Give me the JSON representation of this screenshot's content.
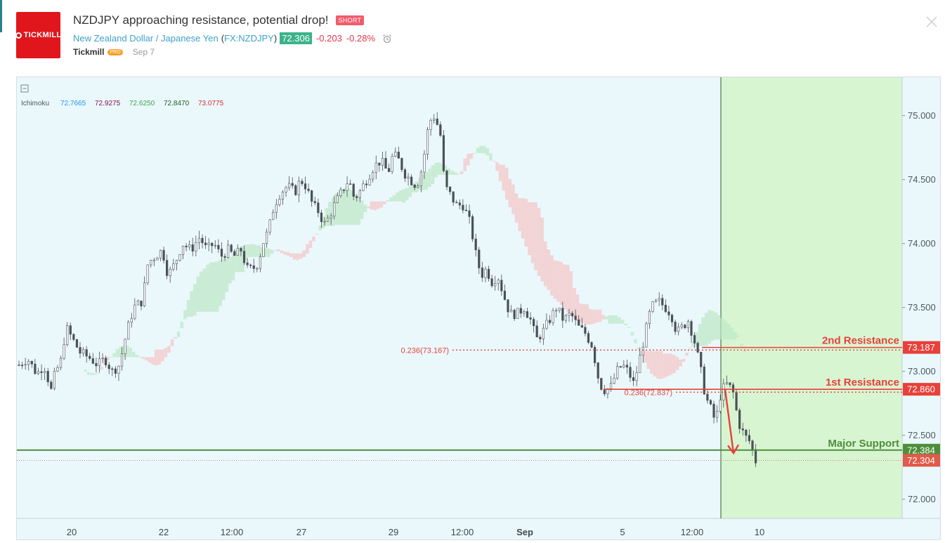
{
  "header": {
    "title": "NZDJPY approaching resistance, potential drop!",
    "badge": "SHORT",
    "logo_text": "TICKMILL",
    "symbol_name": "New Zealand Dollar / Japanese Yen",
    "symbol_code": "FX:NZDJPY",
    "open_paren": "(",
    "close_paren": ")",
    "price": "72.306",
    "change": "-0.203",
    "change_pct": "-0.28%",
    "author": "Tickmill",
    "author_badge": "PRO",
    "date": "Sep 7",
    "icons": {
      "alarm": "alarm-clock-icon",
      "close": "close-icon",
      "collapse": "collapse-icon"
    }
  },
  "colors": {
    "accent": "#3ea1c9",
    "up_price_badge": "#3bb38a",
    "down": "#e5364a",
    "resistance": "#e8403a",
    "support": "#4e8f3a",
    "projection_zone": "#d8f5d2",
    "chart_bg": "#eaf8fc"
  },
  "chart_data": {
    "type": "candlestick",
    "title": "",
    "indicator": {
      "name": "Ichimoku",
      "values": [
        "72.7665",
        "72.9275",
        "72.6250",
        "72.8470",
        "73.0775"
      ],
      "value_colors": [
        "#2196f3",
        "#880e4f",
        "#43a047",
        "#1b5e20",
        "#d32f2f"
      ]
    },
    "y_axis": {
      "position": "right",
      "range": [
        71.85,
        75.3
      ],
      "ticks": [
        "72.000",
        "72.500",
        "73.000",
        "73.500",
        "74.000",
        "74.500",
        "75.000"
      ]
    },
    "x_axis": {
      "ticks": [
        "20",
        "22",
        "12:00",
        "27",
        "29",
        "12:00",
        "Sep",
        "5",
        "12:00",
        "10"
      ]
    },
    "levels": [
      {
        "label": "2nd Resistance",
        "value": 73.187,
        "value_text": "73.187",
        "color": "#e8403a"
      },
      {
        "label": "1st Resistance",
        "value": 72.86,
        "value_text": "72.860",
        "color": "#e8403a"
      },
      {
        "label": "Major Support",
        "value": 72.384,
        "value_text": "72.384",
        "color": "#4e8f3a"
      },
      {
        "label": "",
        "value": 72.304,
        "value_text": "72.304",
        "color": "#e05a4a"
      }
    ],
    "fib_levels": [
      {
        "label": "0.236(73.167)",
        "value": 73.167
      },
      {
        "label": "0.236(72.837)",
        "value": 72.837
      }
    ],
    "close_path": [
      [
        0,
        73.05
      ],
      [
        0.012,
        73.1
      ],
      [
        0.025,
        72.98
      ],
      [
        0.035,
        73.05
      ],
      [
        0.045,
        72.85
      ],
      [
        0.05,
        72.98
      ],
      [
        0.06,
        73.1
      ],
      [
        0.065,
        73.35
      ],
      [
        0.075,
        73.25
      ],
      [
        0.085,
        73.15
      ],
      [
        0.1,
        73.1
      ],
      [
        0.11,
        73.05
      ],
      [
        0.12,
        73.1
      ],
      [
        0.13,
        73.0
      ],
      [
        0.14,
        73.05
      ],
      [
        0.15,
        73.3
      ],
      [
        0.16,
        73.5
      ],
      [
        0.172,
        73.55
      ],
      [
        0.18,
        73.85
      ],
      [
        0.19,
        73.9
      ],
      [
        0.2,
        73.95
      ],
      [
        0.208,
        73.75
      ],
      [
        0.218,
        73.85
      ],
      [
        0.228,
        74.0
      ],
      [
        0.24,
        73.95
      ],
      [
        0.252,
        74.05
      ],
      [
        0.262,
        73.95
      ],
      [
        0.272,
        74.0
      ],
      [
        0.282,
        73.9
      ],
      [
        0.292,
        73.95
      ],
      [
        0.3,
        73.9
      ],
      [
        0.31,
        73.95
      ],
      [
        0.318,
        73.8
      ],
      [
        0.326,
        73.8
      ],
      [
        0.334,
        73.85
      ],
      [
        0.34,
        74.0
      ],
      [
        0.348,
        74.1
      ],
      [
        0.356,
        74.3
      ],
      [
        0.365,
        74.4
      ],
      [
        0.375,
        74.45
      ],
      [
        0.385,
        74.4
      ],
      [
        0.393,
        74.5
      ],
      [
        0.4,
        74.45
      ],
      [
        0.41,
        74.3
      ],
      [
        0.418,
        74.25
      ],
      [
        0.426,
        74.15
      ],
      [
        0.432,
        74.2
      ],
      [
        0.44,
        74.3
      ],
      [
        0.45,
        74.4
      ],
      [
        0.46,
        74.5
      ],
      [
        0.468,
        74.35
      ],
      [
        0.475,
        74.4
      ],
      [
        0.485,
        74.5
      ],
      [
        0.495,
        74.6
      ],
      [
        0.505,
        74.65
      ],
      [
        0.515,
        74.55
      ],
      [
        0.522,
        74.7
      ],
      [
        0.53,
        74.65
      ],
      [
        0.538,
        74.55
      ],
      [
        0.546,
        74.5
      ],
      [
        0.555,
        74.45
      ],
      [
        0.563,
        74.6
      ],
      [
        0.572,
        74.95
      ],
      [
        0.58,
        75.0
      ],
      [
        0.588,
        74.85
      ],
      [
        0.594,
        74.45
      ],
      [
        0.6,
        74.4
      ],
      [
        0.61,
        74.3
      ],
      [
        0.62,
        74.3
      ],
      [
        0.63,
        74.15
      ],
      [
        0.638,
        73.9
      ],
      [
        0.645,
        73.75
      ],
      [
        0.652,
        73.8
      ],
      [
        0.66,
        73.7
      ],
      [
        0.668,
        73.75
      ],
      [
        0.676,
        73.6
      ],
      [
        0.685,
        73.45
      ],
      [
        0.695,
        73.45
      ],
      [
        0.705,
        73.5
      ],
      [
        0.714,
        73.4
      ],
      [
        0.722,
        73.25
      ],
      [
        0.73,
        73.3
      ],
      [
        0.74,
        73.4
      ],
      [
        0.75,
        73.5
      ],
      [
        0.76,
        73.4
      ],
      [
        0.77,
        73.45
      ],
      [
        0.78,
        73.35
      ],
      [
        0.79,
        73.3
      ],
      [
        0.8,
        73.2
      ],
      [
        0.81,
        72.9
      ],
      [
        0.818,
        72.85
      ],
      [
        0.826,
        72.88
      ],
      [
        0.834,
        73.0
      ],
      [
        0.842,
        73.05
      ],
      [
        0.85,
        73.0
      ],
      [
        0.858,
        72.9
      ],
      [
        0.866,
        73.1
      ],
      [
        0.874,
        73.3
      ],
      [
        0.882,
        73.5
      ],
      [
        0.892,
        73.55
      ],
      [
        0.902,
        73.5
      ],
      [
        0.91,
        73.45
      ],
      [
        0.918,
        73.3
      ],
      [
        0.926,
        73.35
      ],
      [
        0.934,
        73.4
      ],
      [
        0.942,
        73.25
      ],
      [
        0.95,
        73.05
      ],
      [
        0.958,
        72.8
      ],
      [
        0.966,
        72.7
      ],
      [
        0.972,
        72.6
      ],
      [
        0.98,
        72.85
      ],
      [
        0.988,
        72.9
      ],
      [
        0.996,
        72.85
      ],
      [
        1.004,
        72.6
      ],
      [
        1.012,
        72.5
      ],
      [
        1.02,
        72.45
      ],
      [
        1.028,
        72.3
      ]
    ],
    "close_path_x_units": "fraction of the plotted time span"
  }
}
